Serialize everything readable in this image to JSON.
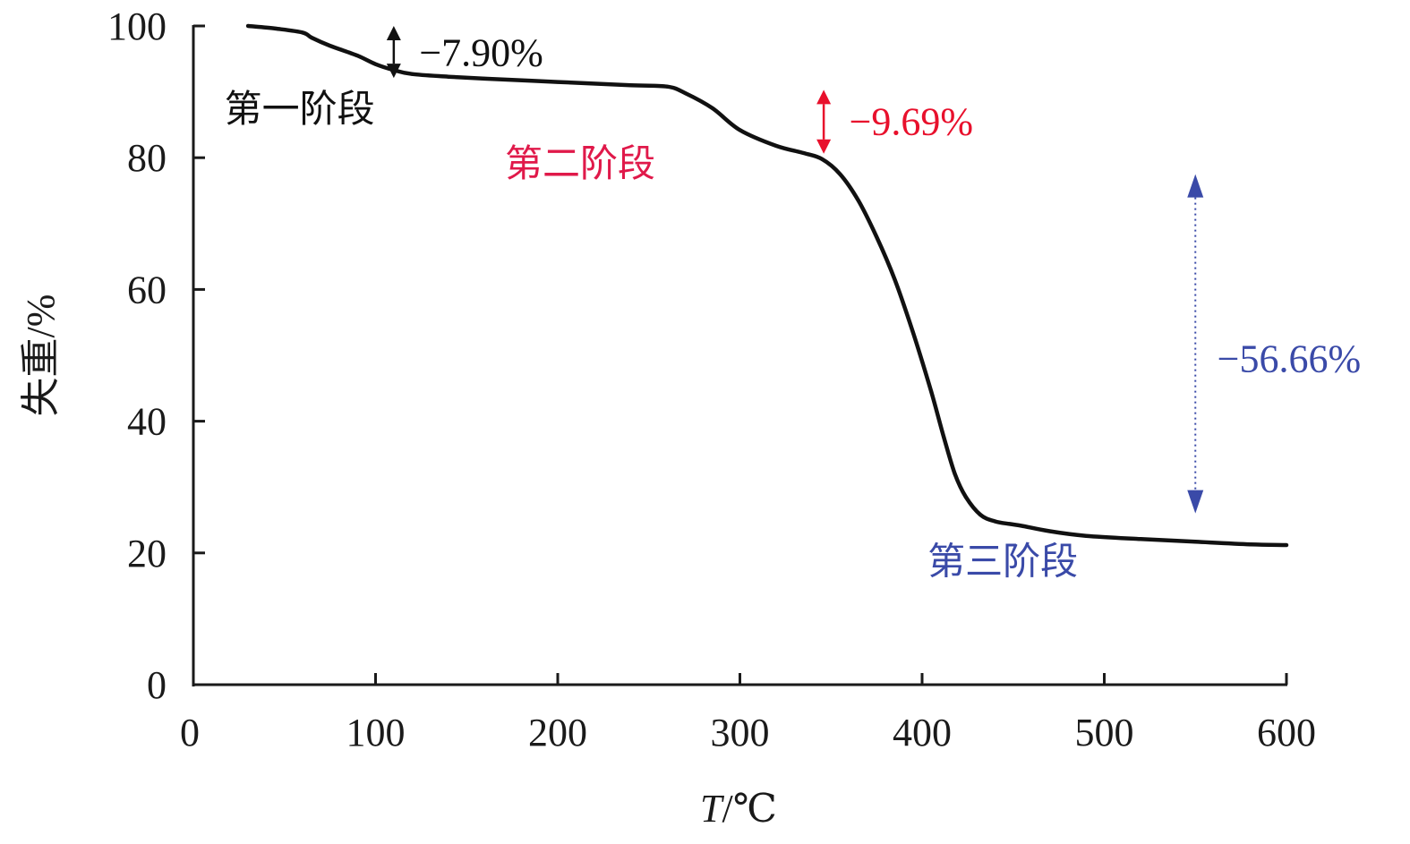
{
  "chart_data": {
    "type": "line",
    "title": "",
    "xlabel_italic": "T",
    "xlabel_rest": "/℃",
    "ylabel": "失重/%",
    "xlim": [
      0,
      600
    ],
    "ylim": [
      0,
      100
    ],
    "x_ticks": [
      0,
      100,
      200,
      300,
      400,
      500,
      600
    ],
    "y_ticks": [
      0,
      20,
      40,
      60,
      80,
      100
    ],
    "x_tick_labels": [
      "0",
      "100",
      "200",
      "300",
      "400",
      "500",
      "600"
    ],
    "y_tick_labels": [
      "0",
      "20",
      "40",
      "60",
      "80",
      "100"
    ],
    "grid": false,
    "series": [
      {
        "color": "#111111",
        "x": [
          30,
          45,
          60,
          65,
          75,
          90,
          100,
          110,
          120,
          140,
          160,
          200,
          240,
          260,
          270,
          285,
          300,
          320,
          335,
          345,
          355,
          365,
          375,
          385,
          395,
          405,
          412,
          418,
          424,
          432,
          440,
          448,
          455,
          470,
          490,
          520,
          550,
          580,
          600
        ],
        "y": [
          100,
          99.6,
          99,
          98.2,
          97,
          95.5,
          94.2,
          93.3,
          92.7,
          92.3,
          92.0,
          91.5,
          91.0,
          90.8,
          89.8,
          87.5,
          84.2,
          81.8,
          80.7,
          79.8,
          77.5,
          73.5,
          68,
          61.5,
          53.5,
          44.5,
          37.5,
          32,
          28.5,
          25.8,
          24.8,
          24.4,
          24.1,
          23.3,
          22.6,
          22.1,
          21.7,
          21.3,
          21.2
        ]
      }
    ],
    "annotations": [
      {
        "text": "−7.90%",
        "color": "#111111",
        "arrow_x": 110,
        "arrow_y": [
          100,
          92.1
        ],
        "label_x": 124,
        "label_y": 96
      },
      {
        "text": "−9.69%",
        "color": "#e8102c",
        "arrow_x": 346,
        "arrow_y": [
          90.3,
          80.6
        ],
        "label_x": 360,
        "label_y": 85.5
      },
      {
        "text": "−56.66%",
        "color": "#3a4aa8",
        "arrow_x": 550,
        "arrow_y": [
          77.5,
          26.0
        ],
        "label_x": 562,
        "label_y": 49.5,
        "dotted": true
      }
    ],
    "stage_labels": [
      {
        "text": "第一阶段",
        "color": "#111111",
        "x": 17,
        "y": 87.5
      },
      {
        "text": "第二阶段",
        "color": "#e0194a",
        "x": 171,
        "y": 79.2
      },
      {
        "text": "第三阶段",
        "color": "#3a4aa8",
        "x": 403,
        "y": 18.8
      }
    ]
  }
}
